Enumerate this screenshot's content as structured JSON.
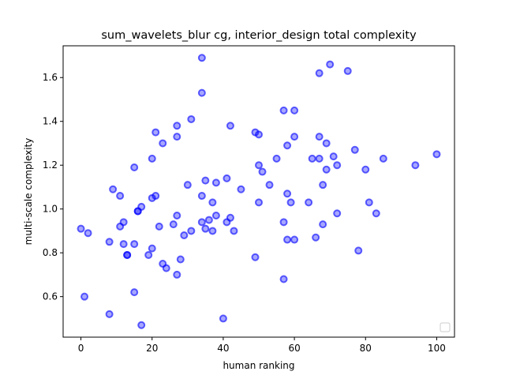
{
  "chart_data": {
    "type": "scatter",
    "title": "sum_wavelets_blur cg, interior_design total complexity",
    "xlabel": "human ranking",
    "ylabel": "multi-scale complexity",
    "xlim": [
      -5,
      105
    ],
    "ylim": [
      0.415,
      1.745
    ],
    "xticks": [
      0,
      20,
      40,
      60,
      80,
      100
    ],
    "xtick_labels": [
      "0",
      "20",
      "40",
      "60",
      "80",
      "100"
    ],
    "yticks": [
      0.6,
      0.8,
      1.0,
      1.2,
      1.4,
      1.6
    ],
    "ytick_labels": [
      "0.6",
      "0.8",
      "1.0",
      "1.2",
      "1.4",
      "1.6"
    ],
    "grid": false,
    "legend": "lower-right (empty)",
    "marker_color": "#0000ff",
    "series": [
      {
        "x": [
          0,
          1,
          2,
          8,
          8,
          9,
          11,
          11,
          12,
          12,
          13,
          13,
          15,
          15,
          15,
          16,
          16,
          17,
          17,
          19,
          20,
          20,
          20,
          21,
          21,
          22,
          23,
          23,
          24,
          26,
          27,
          27,
          27,
          27,
          28,
          29,
          30,
          31,
          31,
          34,
          34,
          34,
          34,
          35,
          35,
          36,
          37,
          37,
          38,
          38,
          40,
          41,
          41,
          42,
          42,
          43,
          45,
          49,
          49,
          50,
          50,
          50,
          51,
          53,
          55,
          57,
          57,
          57,
          58,
          58,
          58,
          59,
          60,
          60,
          60,
          64,
          65,
          66,
          67,
          67,
          67,
          68,
          68,
          69,
          69,
          70,
          71,
          72,
          72,
          75,
          77,
          78,
          80,
          81,
          83,
          85,
          94,
          100
        ],
        "y": [
          0.91,
          0.6,
          0.89,
          0.85,
          0.52,
          1.09,
          1.06,
          0.92,
          0.84,
          0.94,
          0.79,
          0.79,
          0.62,
          0.84,
          1.19,
          0.99,
          0.99,
          1.01,
          0.47,
          0.79,
          0.82,
          1.05,
          1.23,
          1.06,
          1.35,
          0.92,
          0.75,
          1.3,
          0.73,
          0.93,
          0.97,
          0.7,
          1.33,
          1.38,
          0.77,
          0.88,
          1.11,
          0.9,
          1.41,
          1.69,
          1.53,
          1.06,
          0.94,
          1.13,
          0.91,
          0.95,
          1.03,
          0.9,
          0.97,
          1.12,
          0.5,
          1.14,
          0.94,
          1.38,
          0.96,
          0.9,
          1.09,
          1.35,
          0.78,
          1.34,
          1.2,
          1.03,
          1.17,
          1.11,
          1.23,
          1.45,
          0.94,
          0.68,
          1.29,
          1.07,
          0.86,
          1.03,
          1.45,
          1.33,
          0.86,
          1.03,
          1.23,
          0.87,
          1.62,
          1.33,
          1.23,
          1.11,
          0.93,
          1.3,
          1.18,
          1.66,
          1.24,
          1.2,
          0.98,
          1.63,
          1.27,
          0.81,
          1.18,
          1.03,
          0.98,
          1.23,
          1.2,
          1.25
        ]
      }
    ]
  }
}
